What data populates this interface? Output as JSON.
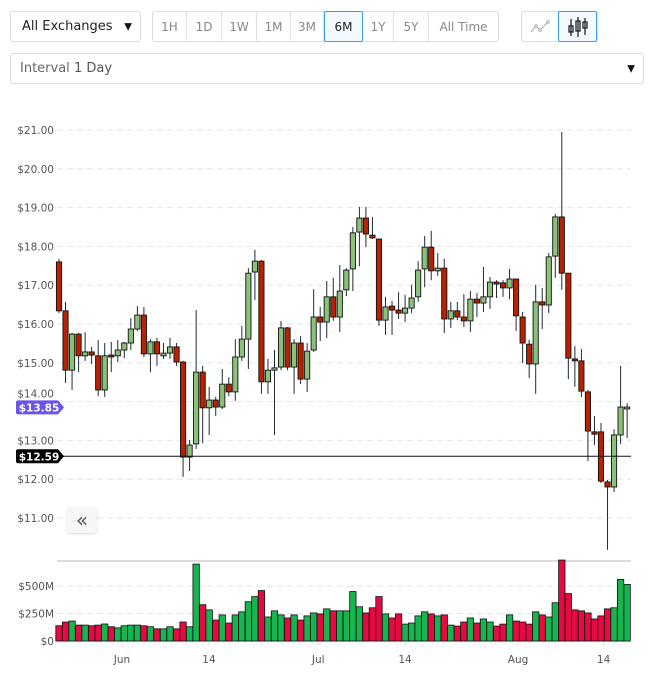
{
  "toolbar": {
    "exchange_select": {
      "value": "All Exchanges",
      "icon": "caret-down-icon"
    },
    "periods": [
      {
        "label": "1H",
        "active": false
      },
      {
        "label": "1D",
        "active": false
      },
      {
        "label": "1W",
        "active": false
      },
      {
        "label": "1M",
        "active": false
      },
      {
        "label": "3M",
        "active": false
      },
      {
        "label": "6M",
        "active": true
      },
      {
        "label": "1Y",
        "active": false
      },
      {
        "label": "5Y",
        "active": false
      },
      {
        "label": "All Time",
        "active": false
      }
    ],
    "chart_types": [
      {
        "icon": "line-chart-icon",
        "active": false
      },
      {
        "icon": "candlestick-chart-icon",
        "active": true
      }
    ],
    "interval_select": {
      "label": "Interval",
      "value": "1 Day",
      "icon": "caret-down-icon"
    }
  },
  "collapse_button": {
    "label": "«",
    "icon": "double-chevron-left-icon"
  },
  "colors": {
    "accent": "#3aa0e8",
    "candle_up": "#8cc17a",
    "candle_down": "#b82200",
    "volume_up": "#16b550",
    "volume_down": "#e30b42",
    "tag_current": "#6b55e8",
    "tag_crosshair": "#000000"
  },
  "chart_data": [
    {
      "type": "candlestick",
      "ylim": [
        10.2,
        21.0
      ],
      "y_ticks": [
        "$21.00",
        "$20.00",
        "$19.00",
        "$18.00",
        "$17.00",
        "$16.00",
        "$15.00",
        "$14.00",
        "$13.00",
        "$12.00",
        "$11.00"
      ],
      "y_tick_values": [
        21,
        20,
        19,
        18,
        17,
        16,
        15,
        14,
        13,
        12,
        11
      ],
      "x_ticks": [
        {
          "label": "Jun",
          "candle": 9.65
        },
        {
          "label": "14",
          "candle": 22.97
        },
        {
          "label": "Jul",
          "candle": 39.7
        },
        {
          "label": "14",
          "candle": 52.99
        },
        {
          "label": "Aug",
          "candle": 70.3
        },
        {
          "label": "14",
          "candle": 83.4
        }
      ],
      "grid": true,
      "price_tags": [
        {
          "label": "$13.85",
          "value": 13.85,
          "kind": "current"
        },
        {
          "label": "$12.59",
          "value": 12.59,
          "kind": "crosshair"
        }
      ],
      "ohlc_columns": [
        "open",
        "high",
        "low",
        "close"
      ],
      "candles": [
        [
          17.6,
          17.68,
          16.28,
          16.34
        ],
        [
          16.34,
          16.57,
          14.48,
          14.81
        ],
        [
          14.81,
          15.77,
          14.3,
          15.74
        ],
        [
          15.74,
          15.77,
          14.76,
          15.18
        ],
        [
          15.18,
          15.79,
          15.05,
          15.28
        ],
        [
          15.28,
          15.41,
          14.97,
          15.2
        ],
        [
          15.18,
          15.59,
          14.14,
          14.3
        ],
        [
          14.3,
          15.51,
          14.12,
          15.18
        ],
        [
          15.2,
          15.54,
          14.76,
          15.15
        ],
        [
          15.18,
          15.59,
          15.02,
          15.33
        ],
        [
          15.33,
          15.54,
          15.12,
          15.51
        ],
        [
          15.51,
          16.15,
          15.33,
          15.87
        ],
        [
          15.87,
          16.46,
          15.82,
          16.23
        ],
        [
          16.23,
          16.44,
          15.15,
          15.23
        ],
        [
          15.23,
          15.61,
          14.76,
          15.54
        ],
        [
          15.54,
          15.64,
          14.92,
          15.23
        ],
        [
          15.18,
          15.51,
          15.1,
          15.25
        ],
        [
          15.25,
          15.64,
          15.1,
          15.41
        ],
        [
          15.41,
          15.51,
          14.92,
          15.02
        ],
        [
          15.02,
          15.05,
          12.06,
          12.57
        ],
        [
          12.57,
          13.01,
          12.21,
          12.88
        ],
        [
          12.91,
          16.36,
          12.78,
          14.76
        ],
        [
          14.76,
          14.92,
          12.93,
          13.84
        ],
        [
          13.84,
          14.38,
          13.14,
          14.04
        ],
        [
          14.04,
          14.12,
          13.63,
          13.86
        ],
        [
          13.86,
          14.84,
          13.81,
          14.45
        ],
        [
          14.45,
          14.63,
          14.14,
          14.25
        ],
        [
          14.25,
          15.61,
          14.02,
          15.15
        ],
        [
          15.15,
          15.95,
          15.05,
          15.61
        ],
        [
          15.61,
          17.44,
          14.84,
          17.31
        ],
        [
          17.34,
          17.91,
          16.62,
          17.62
        ],
        [
          17.62,
          17.65,
          14.2,
          14.51
        ],
        [
          14.51,
          15.1,
          14.2,
          14.81
        ],
        [
          14.81,
          15.33,
          13.14,
          14.87
        ],
        [
          14.89,
          16.08,
          14.81,
          15.9
        ],
        [
          15.9,
          15.92,
          14.81,
          14.89
        ],
        [
          14.89,
          15.61,
          14.2,
          15.51
        ],
        [
          15.51,
          15.69,
          14.45,
          14.58
        ],
        [
          14.58,
          15.51,
          14.25,
          15.3
        ],
        [
          15.33,
          16.9,
          15.28,
          16.18
        ],
        [
          16.18,
          16.44,
          15.56,
          16.05
        ],
        [
          16.05,
          17.11,
          15.64,
          16.7
        ],
        [
          16.7,
          17.19,
          16.08,
          16.18
        ],
        [
          16.18,
          17.52,
          15.79,
          16.85
        ],
        [
          16.88,
          17.44,
          16.72,
          17.39
        ],
        [
          17.42,
          18.5,
          16.85,
          18.35
        ],
        [
          18.37,
          19.02,
          17.49,
          18.73
        ],
        [
          18.73,
          19.02,
          17.98,
          18.32
        ],
        [
          18.29,
          18.76,
          18.19,
          18.22
        ],
        [
          18.19,
          18.19,
          15.95,
          16.1
        ],
        [
          16.1,
          16.7,
          15.72,
          16.44
        ],
        [
          16.46,
          16.59,
          15.72,
          16.36
        ],
        [
          16.36,
          16.82,
          16.13,
          16.28
        ],
        [
          16.28,
          16.75,
          16.05,
          16.41
        ],
        [
          16.41,
          17.01,
          16.28,
          16.67
        ],
        [
          16.7,
          17.62,
          16.57,
          17.39
        ],
        [
          17.42,
          18.27,
          16.95,
          17.98
        ],
        [
          17.98,
          18.4,
          17.13,
          17.37
        ],
        [
          17.37,
          17.83,
          17.24,
          17.44
        ],
        [
          17.44,
          17.68,
          15.77,
          16.13
        ],
        [
          16.13,
          16.57,
          15.9,
          16.34
        ],
        [
          16.34,
          16.57,
          16.1,
          16.18
        ],
        [
          16.18,
          16.77,
          15.92,
          16.08
        ],
        [
          16.08,
          16.85,
          15.79,
          16.64
        ],
        [
          16.64,
          16.8,
          16.18,
          16.54
        ],
        [
          16.54,
          17.47,
          16.31,
          16.7
        ],
        [
          16.7,
          17.21,
          16.39,
          17.08
        ],
        [
          17.08,
          17.13,
          16.67,
          17.03
        ],
        [
          17.06,
          17.13,
          16.7,
          16.93
        ],
        [
          16.93,
          17.42,
          16.64,
          17.16
        ],
        [
          17.16,
          17.16,
          15.82,
          16.21
        ],
        [
          16.18,
          16.31,
          14.99,
          15.51
        ],
        [
          15.48,
          15.59,
          14.61,
          14.97
        ],
        [
          14.97,
          17.01,
          14.2,
          16.57
        ],
        [
          16.57,
          16.93,
          15.87,
          16.49
        ],
        [
          16.49,
          17.83,
          16.28,
          17.73
        ],
        [
          17.75,
          18.84,
          17.19,
          18.76
        ],
        [
          18.76,
          20.95,
          16.88,
          17.31
        ],
        [
          17.31,
          17.31,
          14.58,
          15.12
        ],
        [
          15.1,
          15.43,
          14.38,
          15.05
        ],
        [
          15.05,
          15.36,
          14.12,
          14.27
        ],
        [
          14.25,
          14.3,
          12.47,
          13.24
        ],
        [
          13.22,
          13.63,
          12.88,
          13.16
        ],
        [
          13.22,
          13.45,
          11.9,
          11.95
        ],
        [
          11.93,
          11.98,
          10.18,
          11.8
        ],
        [
          11.8,
          13.29,
          11.67,
          13.14
        ],
        [
          13.14,
          14.92,
          12.91,
          13.86
        ],
        [
          13.81,
          13.96,
          13.06,
          13.86
        ]
      ]
    },
    {
      "type": "bar",
      "ylim": [
        0,
        740
      ],
      "y_unit": "M",
      "y_ticks": [
        "$500M",
        "$250M",
        "$0"
      ],
      "y_tick_values": [
        500,
        250,
        0
      ],
      "grid": true,
      "values": [
        139,
        173,
        182,
        145,
        145,
        139,
        145,
        155,
        130,
        120,
        139,
        145,
        145,
        139,
        130,
        111,
        111,
        130,
        111,
        173,
        130,
        701,
        331,
        284,
        191,
        238,
        164,
        238,
        266,
        358,
        405,
        460,
        219,
        275,
        238,
        210,
        238,
        191,
        229,
        256,
        247,
        293,
        275,
        275,
        275,
        451,
        312,
        256,
        303,
        405,
        247,
        210,
        247,
        154,
        164,
        229,
        266,
        247,
        229,
        238,
        145,
        136,
        173,
        210,
        164,
        201,
        173,
        136,
        154,
        238,
        182,
        173,
        154,
        266,
        238,
        219,
        349,
        738,
        432,
        284,
        275,
        256,
        201,
        229,
        293,
        303,
        562,
        516
      ]
    }
  ]
}
